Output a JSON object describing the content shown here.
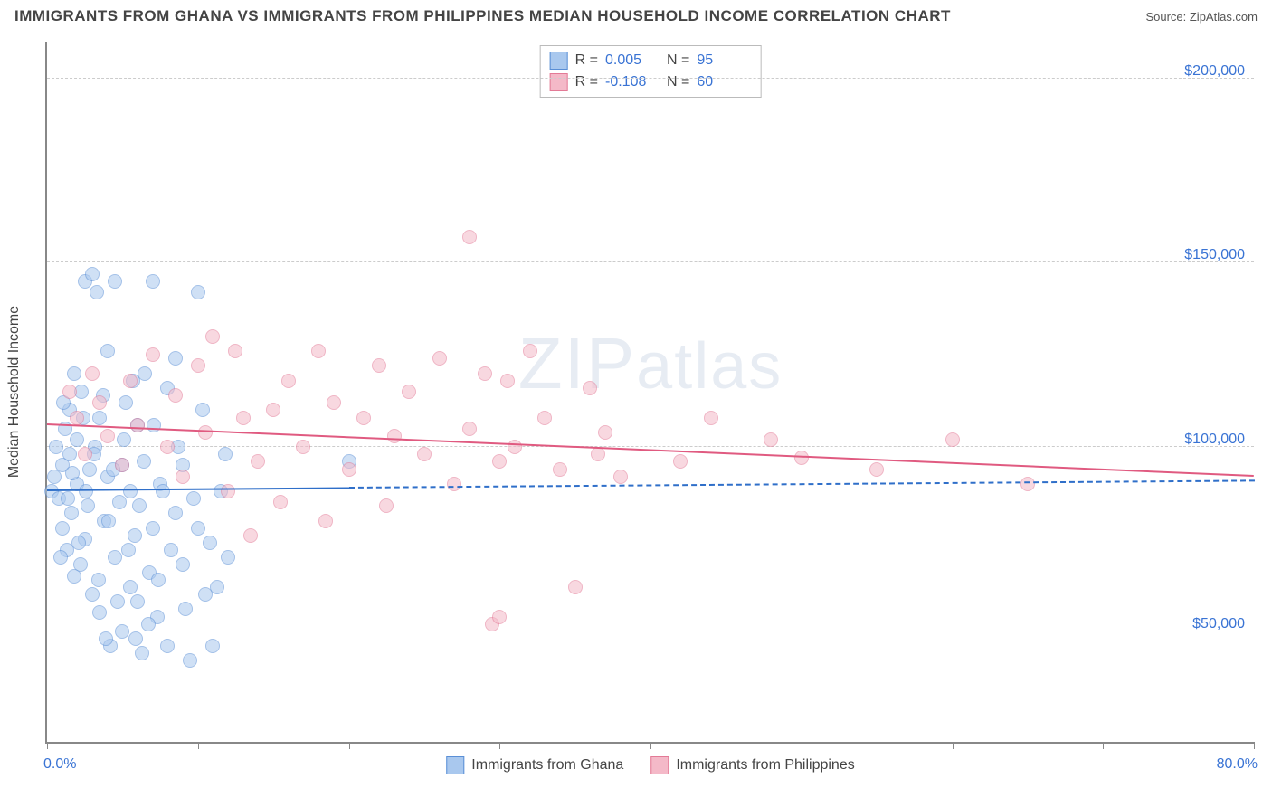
{
  "title": "IMMIGRANTS FROM GHANA VS IMMIGRANTS FROM PHILIPPINES MEDIAN HOUSEHOLD INCOME CORRELATION CHART",
  "source_label": "Source: ",
  "source_value": "ZipAtlas.com",
  "watermark_pre": "ZIP",
  "watermark_post": "atlas",
  "chart": {
    "type": "scatter",
    "x_min": 0.0,
    "x_max": 80.0,
    "x_left_label": "0.0%",
    "x_right_label": "80.0%",
    "x_ticks": [
      0,
      10,
      20,
      30,
      40,
      50,
      60,
      70,
      80
    ],
    "y_min": 20000,
    "y_max": 210000,
    "y_ticks": [
      50000,
      100000,
      150000,
      200000
    ],
    "y_tick_labels": [
      "$50,000",
      "$100,000",
      "$150,000",
      "$200,000"
    ],
    "y_title": "Median Household Income",
    "grid_color": "#cccccc",
    "axis_color": "#888888",
    "label_color": "#3973d4",
    "background_color": "#ffffff",
    "point_radius": 8,
    "point_opacity": 0.55,
    "label_fontsize": 16,
    "title_fontsize": 17
  },
  "series": [
    {
      "name": "Immigrants from Ghana",
      "key": "ghana",
      "fill": "#a9c8ee",
      "stroke": "#5a8fd6",
      "line_color": "#2f6fc9",
      "R_label": "R =",
      "R": "0.005",
      "N_label": "N =",
      "N": "95",
      "reg_y_start": 88000,
      "reg_y_end": 90500,
      "reg_x_solid_end": 20.0,
      "points": [
        [
          0.3,
          88000
        ],
        [
          0.5,
          92000
        ],
        [
          0.8,
          86000
        ],
        [
          1.0,
          95000
        ],
        [
          1.0,
          78000
        ],
        [
          1.2,
          105000
        ],
        [
          1.3,
          72000
        ],
        [
          1.5,
          110000
        ],
        [
          1.5,
          98000
        ],
        [
          1.6,
          82000
        ],
        [
          1.8,
          120000
        ],
        [
          1.8,
          65000
        ],
        [
          2.0,
          102000
        ],
        [
          2.0,
          90000
        ],
        [
          2.2,
          68000
        ],
        [
          2.3,
          115000
        ],
        [
          2.5,
          145000
        ],
        [
          2.5,
          75000
        ],
        [
          2.6,
          88000
        ],
        [
          2.8,
          94000
        ],
        [
          3.0,
          147000
        ],
        [
          3.0,
          60000
        ],
        [
          3.2,
          100000
        ],
        [
          3.3,
          142000
        ],
        [
          3.5,
          55000
        ],
        [
          3.5,
          108000
        ],
        [
          3.8,
          80000
        ],
        [
          4.0,
          92000
        ],
        [
          4.0,
          126000
        ],
        [
          4.2,
          46000
        ],
        [
          4.5,
          145000
        ],
        [
          4.5,
          70000
        ],
        [
          4.8,
          85000
        ],
        [
          5.0,
          95000
        ],
        [
          5.0,
          50000
        ],
        [
          5.2,
          112000
        ],
        [
          5.5,
          62000
        ],
        [
          5.5,
          88000
        ],
        [
          5.8,
          76000
        ],
        [
          6.0,
          106000
        ],
        [
          6.0,
          58000
        ],
        [
          6.3,
          44000
        ],
        [
          6.5,
          120000
        ],
        [
          6.8,
          66000
        ],
        [
          7.0,
          145000
        ],
        [
          7.0,
          78000
        ],
        [
          7.3,
          54000
        ],
        [
          7.5,
          90000
        ],
        [
          8.0,
          116000
        ],
        [
          8.0,
          46000
        ],
        [
          8.5,
          82000
        ],
        [
          8.5,
          124000
        ],
        [
          9.0,
          68000
        ],
        [
          9.0,
          95000
        ],
        [
          9.5,
          42000
        ],
        [
          10.0,
          142000
        ],
        [
          10.0,
          78000
        ],
        [
          10.5,
          60000
        ],
        [
          11.0,
          46000
        ],
        [
          11.5,
          88000
        ],
        [
          12.0,
          70000
        ],
        [
          0.6,
          100000
        ],
        [
          0.9,
          70000
        ],
        [
          1.1,
          112000
        ],
        [
          1.4,
          86000
        ],
        [
          1.7,
          93000
        ],
        [
          2.1,
          74000
        ],
        [
          2.4,
          108000
        ],
        [
          2.7,
          84000
        ],
        [
          3.1,
          98000
        ],
        [
          3.4,
          64000
        ],
        [
          3.7,
          114000
        ],
        [
          4.1,
          80000
        ],
        [
          4.4,
          94000
        ],
        [
          4.7,
          58000
        ],
        [
          5.1,
          102000
        ],
        [
          5.4,
          72000
        ],
        [
          5.7,
          118000
        ],
        [
          6.1,
          84000
        ],
        [
          6.4,
          96000
        ],
        [
          6.7,
          52000
        ],
        [
          7.1,
          106000
        ],
        [
          7.4,
          64000
        ],
        [
          7.7,
          88000
        ],
        [
          8.2,
          72000
        ],
        [
          8.7,
          100000
        ],
        [
          9.2,
          56000
        ],
        [
          9.7,
          86000
        ],
        [
          10.3,
          110000
        ],
        [
          10.8,
          74000
        ],
        [
          11.3,
          62000
        ],
        [
          11.8,
          98000
        ],
        [
          3.9,
          48000
        ],
        [
          5.9,
          48000
        ],
        [
          20.0,
          96000
        ]
      ]
    },
    {
      "name": "Immigrants from Philippines",
      "key": "philippines",
      "fill": "#f4b9c8",
      "stroke": "#e37a96",
      "line_color": "#e05a80",
      "R_label": "R =",
      "R": "-0.108",
      "N_label": "N =",
      "N": "60",
      "reg_y_start": 106000,
      "reg_y_end": 92000,
      "reg_x_solid_end": 80.0,
      "points": [
        [
          1.5,
          115000
        ],
        [
          2.0,
          108000
        ],
        [
          2.5,
          98000
        ],
        [
          3.0,
          120000
        ],
        [
          3.5,
          112000
        ],
        [
          4.0,
          103000
        ],
        [
          5.0,
          95000
        ],
        [
          5.5,
          118000
        ],
        [
          6.0,
          106000
        ],
        [
          7.0,
          125000
        ],
        [
          8.0,
          100000
        ],
        [
          8.5,
          114000
        ],
        [
          9.0,
          92000
        ],
        [
          10.0,
          122000
        ],
        [
          10.5,
          104000
        ],
        [
          11.0,
          130000
        ],
        [
          12.0,
          88000
        ],
        [
          12.5,
          126000
        ],
        [
          13.0,
          108000
        ],
        [
          14.0,
          96000
        ],
        [
          15.0,
          110000
        ],
        [
          15.5,
          85000
        ],
        [
          16.0,
          118000
        ],
        [
          17.0,
          100000
        ],
        [
          18.0,
          126000
        ],
        [
          18.5,
          80000
        ],
        [
          19.0,
          112000
        ],
        [
          20.0,
          94000
        ],
        [
          21.0,
          108000
        ],
        [
          22.0,
          122000
        ],
        [
          22.5,
          84000
        ],
        [
          23.0,
          103000
        ],
        [
          24.0,
          115000
        ],
        [
          25.0,
          98000
        ],
        [
          26.0,
          124000
        ],
        [
          27.0,
          90000
        ],
        [
          28.0,
          157000
        ],
        [
          28.0,
          105000
        ],
        [
          29.0,
          120000
        ],
        [
          29.5,
          52000
        ],
        [
          30.0,
          96000
        ],
        [
          30.0,
          54000
        ],
        [
          30.5,
          118000
        ],
        [
          31.0,
          100000
        ],
        [
          32.0,
          126000
        ],
        [
          33.0,
          108000
        ],
        [
          34.0,
          94000
        ],
        [
          35.0,
          62000
        ],
        [
          36.0,
          116000
        ],
        [
          36.5,
          98000
        ],
        [
          37.0,
          104000
        ],
        [
          38.0,
          92000
        ],
        [
          42.0,
          96000
        ],
        [
          44.0,
          108000
        ],
        [
          48.0,
          102000
        ],
        [
          50.0,
          97000
        ],
        [
          55.0,
          94000
        ],
        [
          60.0,
          102000
        ],
        [
          65.0,
          90000
        ],
        [
          13.5,
          76000
        ]
      ]
    }
  ],
  "legend_bottom": [
    {
      "key": "ghana",
      "label": "Immigrants from Ghana"
    },
    {
      "key": "philippines",
      "label": "Immigrants from Philippines"
    }
  ]
}
